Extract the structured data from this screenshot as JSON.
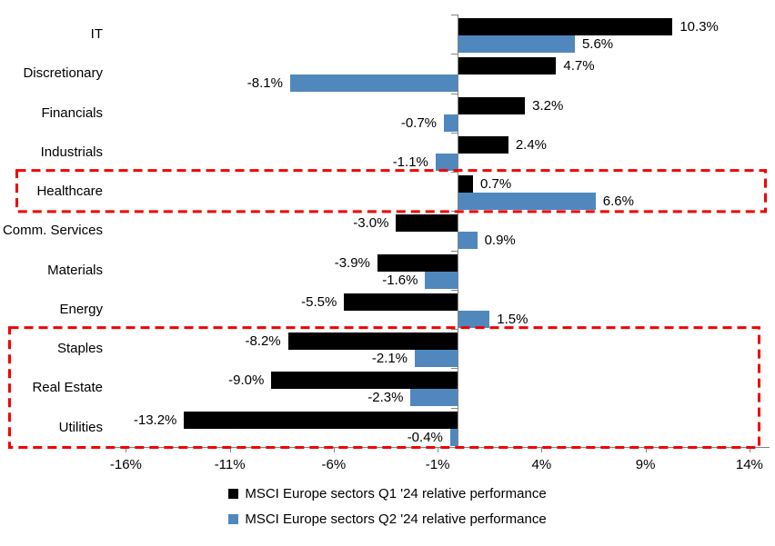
{
  "chart_data": {
    "type": "bar",
    "orientation": "horizontal",
    "title": "",
    "categories": [
      "IT",
      "Discretionary",
      "Financials",
      "Industrials",
      "Healthcare",
      "Comm. Services",
      "Materials",
      "Energy",
      "Staples",
      "Real Estate",
      "Utilities"
    ],
    "series": [
      {
        "name": "MSCI Europe sectors Q1 '24 relative performance",
        "color": "#000000",
        "values": [
          10.3,
          4.7,
          3.2,
          2.4,
          0.7,
          -3.0,
          -3.9,
          -5.5,
          -8.2,
          -9.0,
          -13.2
        ]
      },
      {
        "name": "MSCI Europe sectors Q2 '24 relative performance",
        "color": "#5088BE",
        "values": [
          5.6,
          -8.1,
          -0.7,
          -1.1,
          6.6,
          0.9,
          -1.6,
          1.5,
          -2.1,
          -2.3,
          -0.4
        ]
      }
    ],
    "value_label_suffix": "%",
    "x_ticks": [
      "-16%",
      "-11%",
      "-6%",
      "-1%",
      "4%",
      "9%",
      "14%"
    ],
    "x_tick_values": [
      -16,
      -11,
      -6,
      -1,
      4,
      9,
      14
    ],
    "xlim": [
      -16.5,
      15
    ],
    "grid": "off",
    "legend_position": "bottom",
    "axis_color": "#848484",
    "highlight_color": "#F10000",
    "highlight_boxes": [
      {
        "categories": [
          "Healthcare"
        ]
      },
      {
        "categories": [
          "Staples",
          "Real Estate",
          "Utilities"
        ]
      }
    ]
  },
  "legend": {
    "items": [
      {
        "label": "MSCI Europe sectors Q1 '24 relative performance",
        "color": "#000000"
      },
      {
        "label": "MSCI Europe sectors Q2 '24 relative performance",
        "color": "#5088BE"
      }
    ]
  }
}
